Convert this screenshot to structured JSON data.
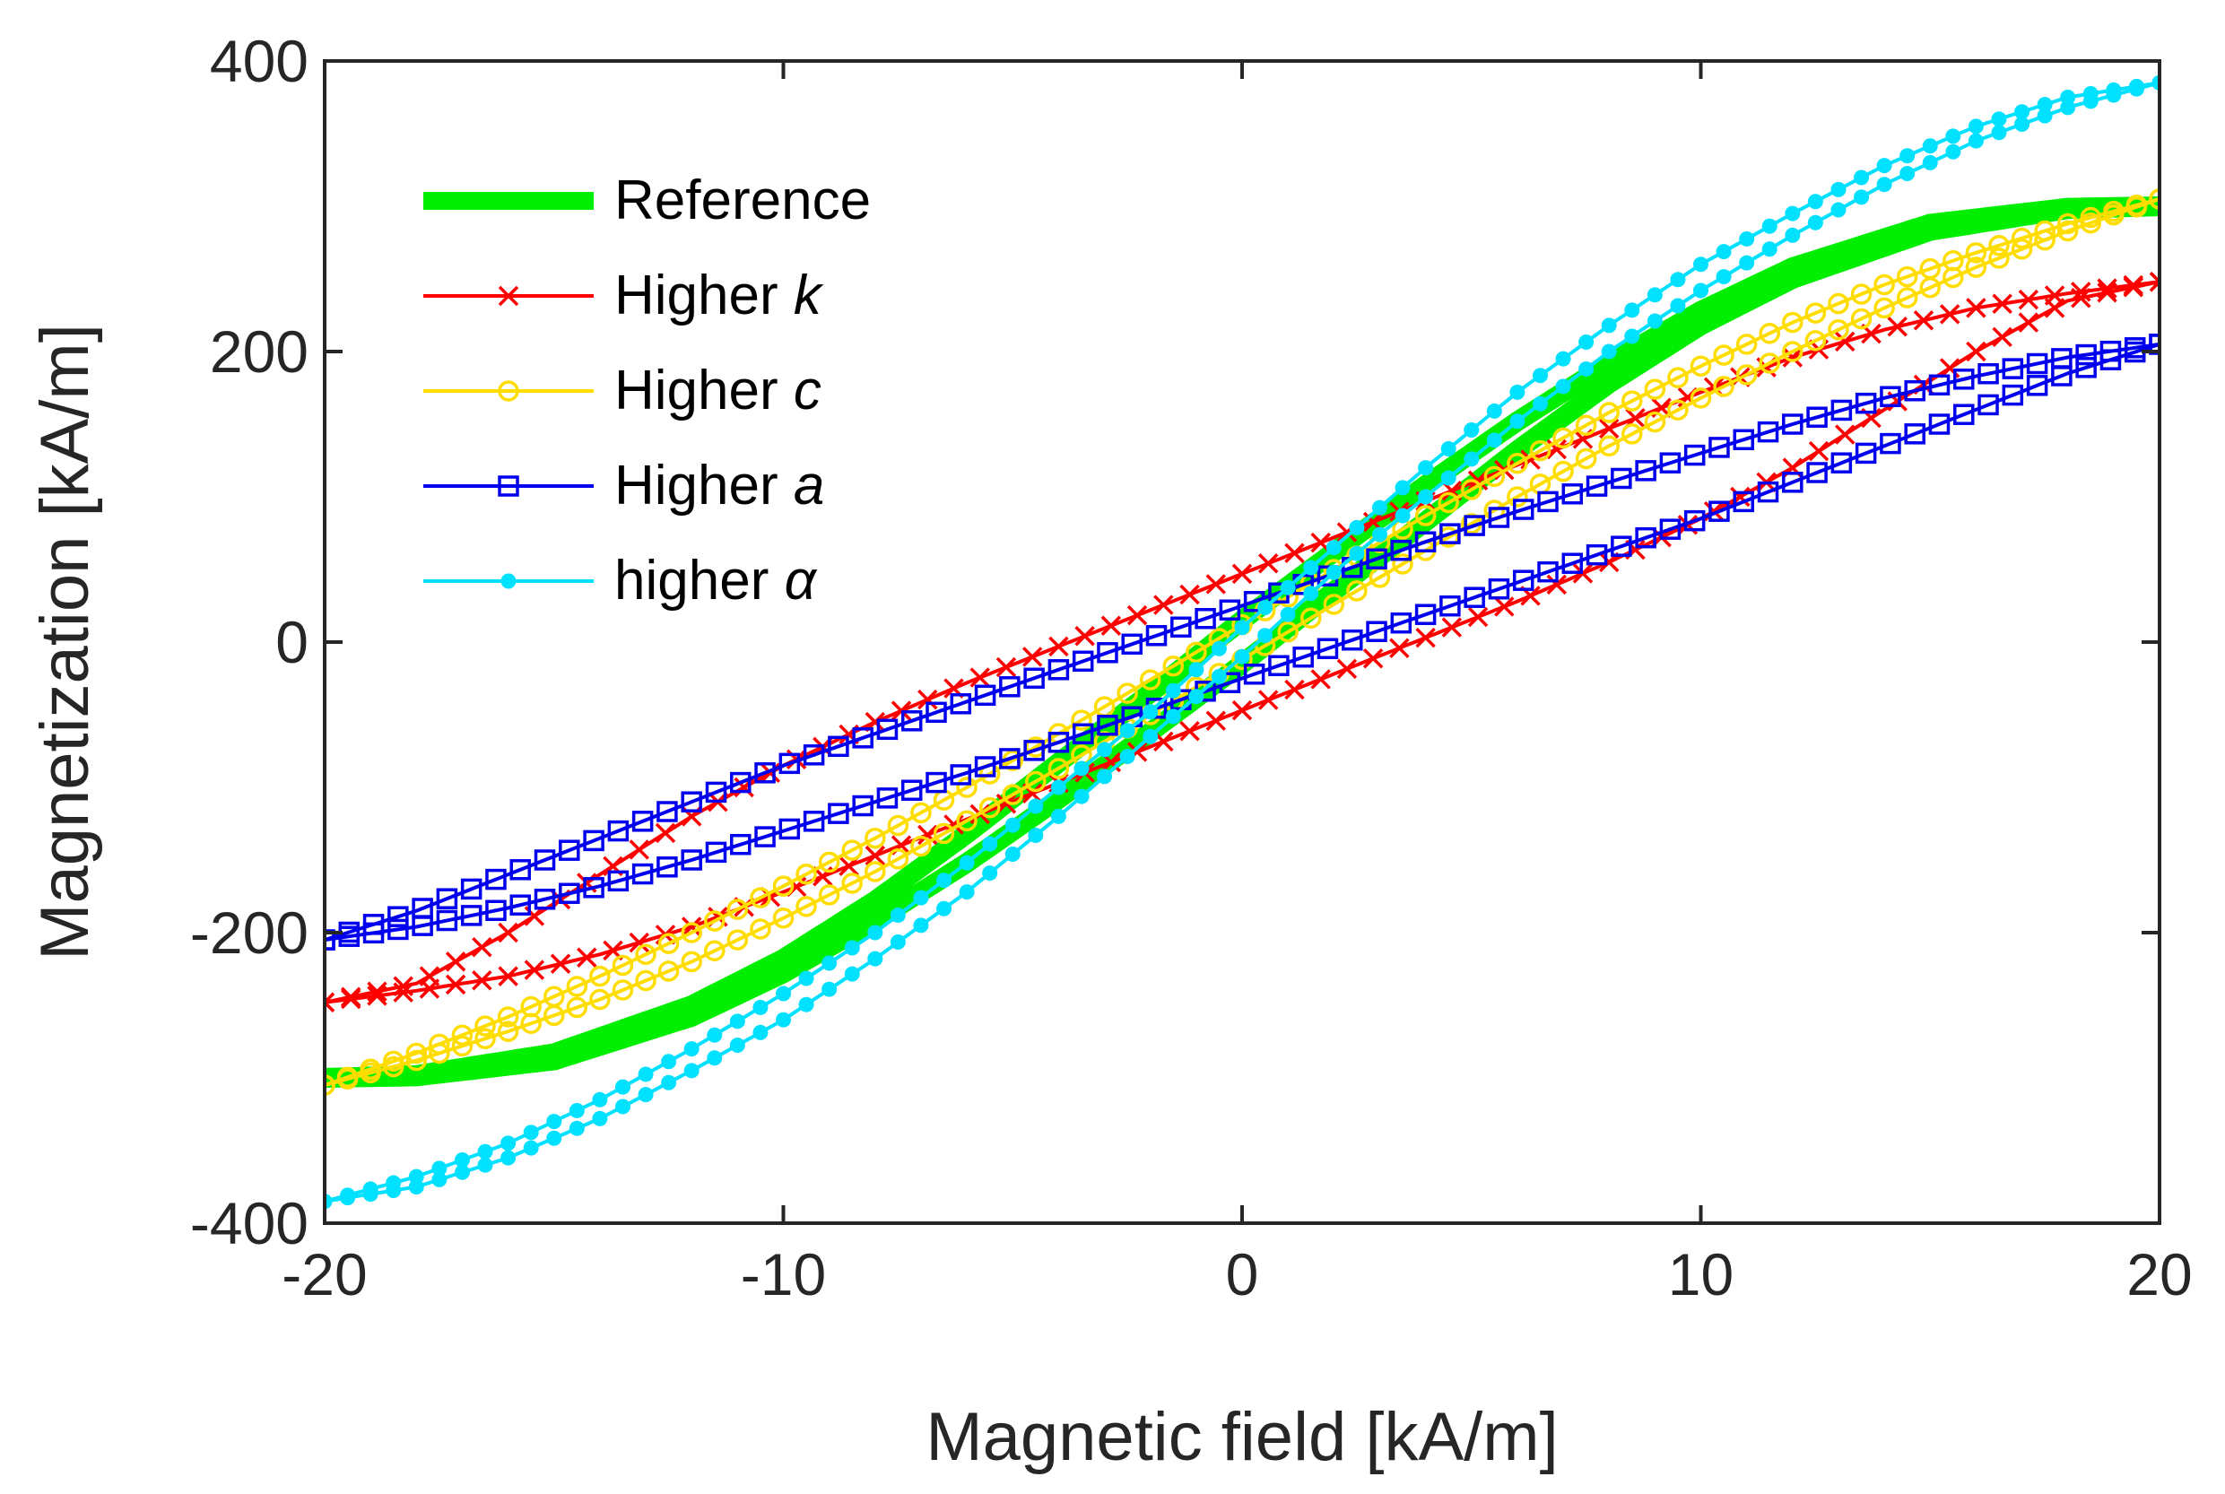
{
  "chart_data": {
    "type": "line",
    "title": "",
    "xlabel": "Magnetic field [kA/m]",
    "ylabel": "Magnetization [kA/m]",
    "xlim": [
      -20,
      20
    ],
    "ylim": [
      -400,
      400
    ],
    "xticks": [
      -20,
      -10,
      0,
      10,
      20
    ],
    "yticks": [
      -400,
      -200,
      0,
      200,
      400
    ],
    "xtick_labels": [
      "-20",
      "-10",
      "0",
      "10",
      "20"
    ],
    "ytick_labels": [
      "-400",
      "-200",
      "0",
      "200",
      "400"
    ],
    "grid": false,
    "legend_position": "top-left",
    "series": [
      {
        "name": "Reference",
        "label_text": "Reference",
        "param": "",
        "color": "#00ee00",
        "marker": "none",
        "line_style": "thick",
        "saturation": 300,
        "coercive_field": 1.2,
        "descending": [
          [
            20,
            300
          ],
          [
            18,
            298
          ],
          [
            15,
            283
          ],
          [
            12,
            250
          ],
          [
            10,
            218
          ],
          [
            8,
            178
          ],
          [
            6,
            132
          ],
          [
            4,
            83
          ],
          [
            2,
            35
          ],
          [
            0,
            -15
          ],
          [
            -2,
            -62
          ],
          [
            -4,
            -108
          ],
          [
            -6,
            -152
          ],
          [
            -8,
            -192
          ],
          [
            -10,
            -228
          ],
          [
            -12,
            -258
          ],
          [
            -15,
            -288
          ],
          [
            -18,
            -299
          ],
          [
            -20,
            -300
          ]
        ],
        "ascending": [
          [
            -20,
            -300
          ],
          [
            -18,
            -298
          ],
          [
            -15,
            -283
          ],
          [
            -12,
            -250
          ],
          [
            -10,
            -218
          ],
          [
            -8,
            -178
          ],
          [
            -6,
            -132
          ],
          [
            -4,
            -83
          ],
          [
            -2,
            -35
          ],
          [
            0,
            15
          ],
          [
            2,
            62
          ],
          [
            4,
            108
          ],
          [
            6,
            152
          ],
          [
            8,
            192
          ],
          [
            10,
            228
          ],
          [
            12,
            258
          ],
          [
            15,
            288
          ],
          [
            18,
            299
          ],
          [
            20,
            300
          ]
        ]
      },
      {
        "name": "Higher k",
        "label_text": "Higher ",
        "param": "k",
        "color": "#ff0000",
        "marker": "x",
        "line_style": "thin",
        "saturation": 248,
        "coercive_field": 4.3,
        "descending": [
          [
            20,
            248
          ],
          [
            18,
            240
          ],
          [
            16,
            230
          ],
          [
            14,
            215
          ],
          [
            12,
            196
          ],
          [
            10,
            172
          ],
          [
            8,
            147
          ],
          [
            6,
            122
          ],
          [
            4,
            97
          ],
          [
            2,
            72
          ],
          [
            0,
            47
          ],
          [
            -2,
            22
          ],
          [
            -4,
            -3
          ],
          [
            -6,
            -28
          ],
          [
            -8,
            -55
          ],
          [
            -10,
            -85
          ],
          [
            -12,
            -120
          ],
          [
            -14,
            -160
          ],
          [
            -16,
            -200
          ],
          [
            -18,
            -235
          ],
          [
            -20,
            -248
          ]
        ],
        "ascending": [
          [
            -20,
            -248
          ],
          [
            -18,
            -240
          ],
          [
            -16,
            -230
          ],
          [
            -14,
            -215
          ],
          [
            -12,
            -196
          ],
          [
            -10,
            -172
          ],
          [
            -8,
            -147
          ],
          [
            -6,
            -122
          ],
          [
            -4,
            -97
          ],
          [
            -2,
            -72
          ],
          [
            0,
            -47
          ],
          [
            2,
            -22
          ],
          [
            4,
            3
          ],
          [
            6,
            28
          ],
          [
            8,
            55
          ],
          [
            10,
            85
          ],
          [
            12,
            120
          ],
          [
            14,
            160
          ],
          [
            16,
            200
          ],
          [
            18,
            235
          ],
          [
            20,
            248
          ]
        ]
      },
      {
        "name": "Higher c",
        "label_text": "Higher ",
        "param": "c",
        "color": "#ffdd00",
        "marker": "o",
        "line_style": "thin",
        "saturation": 305,
        "coercive_field": 1.0,
        "descending": [
          [
            20,
            305
          ],
          [
            18,
            288
          ],
          [
            16,
            268
          ],
          [
            14,
            246
          ],
          [
            12,
            220
          ],
          [
            10,
            190
          ],
          [
            8,
            158
          ],
          [
            6,
            123
          ],
          [
            4,
            87
          ],
          [
            2,
            50
          ],
          [
            0,
            12
          ],
          [
            -2,
            -26
          ],
          [
            -4,
            -63
          ],
          [
            -6,
            -100
          ],
          [
            -8,
            -135
          ],
          [
            -10,
            -168
          ],
          [
            -12,
            -200
          ],
          [
            -14,
            -230
          ],
          [
            -16,
            -258
          ],
          [
            -18,
            -283
          ],
          [
            -20,
            -305
          ]
        ],
        "ascending": [
          [
            -20,
            -305
          ],
          [
            -18,
            -288
          ],
          [
            -16,
            -268
          ],
          [
            -14,
            -246
          ],
          [
            -12,
            -220
          ],
          [
            -10,
            -190
          ],
          [
            -8,
            -158
          ],
          [
            -6,
            -123
          ],
          [
            -4,
            -87
          ],
          [
            -2,
            -50
          ],
          [
            0,
            -12
          ],
          [
            2,
            26
          ],
          [
            4,
            63
          ],
          [
            6,
            100
          ],
          [
            8,
            135
          ],
          [
            10,
            168
          ],
          [
            12,
            200
          ],
          [
            14,
            230
          ],
          [
            16,
            258
          ],
          [
            18,
            283
          ],
          [
            20,
            305
          ]
        ]
      },
      {
        "name": "Higher a",
        "label_text": "Higher ",
        "param": "a",
        "color": "#0000ee",
        "marker": "square",
        "line_style": "thin",
        "saturation": 205,
        "coercive_field": 2.6,
        "descending": [
          [
            20,
            205
          ],
          [
            18,
            196
          ],
          [
            16,
            183
          ],
          [
            14,
            168
          ],
          [
            12,
            150
          ],
          [
            10,
            130
          ],
          [
            8,
            110
          ],
          [
            6,
            90
          ],
          [
            4,
            69
          ],
          [
            2,
            47
          ],
          [
            0,
            25
          ],
          [
            -2,
            3
          ],
          [
            -4,
            -19
          ],
          [
            -6,
            -41
          ],
          [
            -8,
            -63
          ],
          [
            -10,
            -85
          ],
          [
            -12,
            -110
          ],
          [
            -14,
            -135
          ],
          [
            -16,
            -160
          ],
          [
            -18,
            -185
          ],
          [
            -20,
            -205
          ]
        ],
        "ascending": [
          [
            -20,
            -205
          ],
          [
            -18,
            -196
          ],
          [
            -16,
            -183
          ],
          [
            -14,
            -168
          ],
          [
            -12,
            -150
          ],
          [
            -10,
            -130
          ],
          [
            -8,
            -110
          ],
          [
            -6,
            -90
          ],
          [
            -4,
            -69
          ],
          [
            -2,
            -47
          ],
          [
            0,
            -25
          ],
          [
            2,
            -3
          ],
          [
            4,
            19
          ],
          [
            6,
            41
          ],
          [
            8,
            63
          ],
          [
            10,
            85
          ],
          [
            12,
            110
          ],
          [
            14,
            135
          ],
          [
            16,
            160
          ],
          [
            18,
            185
          ],
          [
            20,
            205
          ]
        ]
      },
      {
        "name": "higher α",
        "label_text": "higher ",
        "param": "α",
        "color": "#00e0ff",
        "marker": "dot",
        "line_style": "thin",
        "saturation": 385,
        "coercive_field": 1.2,
        "descending": [
          [
            20,
            385
          ],
          [
            18,
            368
          ],
          [
            16,
            345
          ],
          [
            14,
            315
          ],
          [
            12,
            280
          ],
          [
            10,
            242
          ],
          [
            8,
            200
          ],
          [
            6,
            152
          ],
          [
            4,
            100
          ],
          [
            2,
            48
          ],
          [
            0,
            -10
          ],
          [
            -2,
            -65
          ],
          [
            -4,
            -120
          ],
          [
            -6,
            -172
          ],
          [
            -8,
            -218
          ],
          [
            -10,
            -260
          ],
          [
            -12,
            -295
          ],
          [
            -14,
            -328
          ],
          [
            -16,
            -355
          ],
          [
            -18,
            -375
          ],
          [
            -20,
            -385
          ]
        ],
        "ascending": [
          [
            -20,
            -385
          ],
          [
            -18,
            -368
          ],
          [
            -16,
            -345
          ],
          [
            -14,
            -315
          ],
          [
            -12,
            -280
          ],
          [
            -10,
            -242
          ],
          [
            -8,
            -200
          ],
          [
            -6,
            -152
          ],
          [
            -4,
            -100
          ],
          [
            -2,
            -48
          ],
          [
            0,
            10
          ],
          [
            2,
            65
          ],
          [
            4,
            120
          ],
          [
            6,
            172
          ],
          [
            8,
            218
          ],
          [
            10,
            260
          ],
          [
            12,
            295
          ],
          [
            14,
            328
          ],
          [
            16,
            355
          ],
          [
            18,
            375
          ],
          [
            20,
            385
          ]
        ]
      }
    ]
  }
}
